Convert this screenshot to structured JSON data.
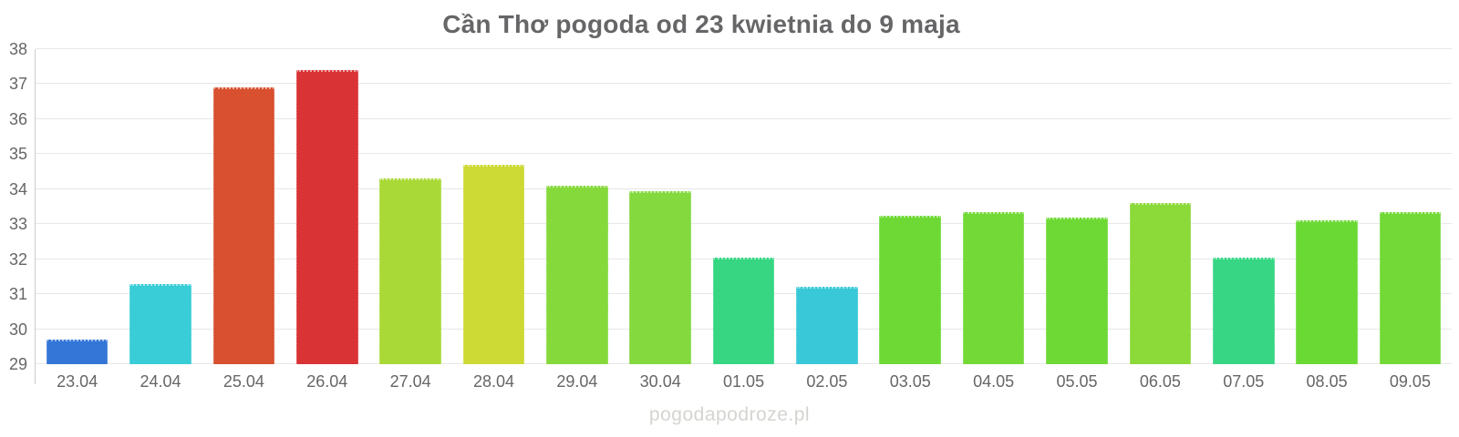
{
  "title": "Cần Thơ pogoda od 23 kwietnia do 9 maja",
  "watermark": "pogodapodroze.pl",
  "colors": {
    "background": "#ffffff",
    "title_text": "#666668",
    "axis_label_text": "#666666",
    "gridline": "#e7e7e7",
    "axis_line": "#cccccc",
    "watermark_text": "#d4d4d0"
  },
  "chart_data": {
    "type": "bar",
    "title": "Cần Thơ pogoda od 23 kwietnia do 9 maja",
    "xlabel": "",
    "ylabel": "",
    "ylim": [
      29,
      38
    ],
    "yticks": [
      29,
      30,
      31,
      32,
      33,
      34,
      35,
      36,
      37,
      38
    ],
    "grid": "horizontal",
    "legend": "none",
    "categories": [
      "23.04",
      "24.04",
      "25.04",
      "26.04",
      "27.04",
      "28.04",
      "29.04",
      "30.04",
      "01.05",
      "02.05",
      "03.05",
      "04.05",
      "05.05",
      "06.05",
      "07.05",
      "08.05",
      "09.05"
    ],
    "values": [
      29.7,
      31.3,
      36.9,
      37.4,
      34.3,
      34.7,
      34.1,
      33.95,
      32.05,
      31.2,
      33.25,
      33.35,
      33.2,
      33.6,
      32.05,
      33.1,
      33.35
    ],
    "bar_colors": [
      "#3376d7",
      "#38cdd7",
      "#d8502f",
      "#da3335",
      "#a8d936",
      "#cdd934",
      "#86d93b",
      "#83d93d",
      "#36d683",
      "#39c8d8",
      "#6ed935",
      "#73d937",
      "#6ed935",
      "#8cd93a",
      "#37d685",
      "#6bd934",
      "#73d937"
    ]
  }
}
